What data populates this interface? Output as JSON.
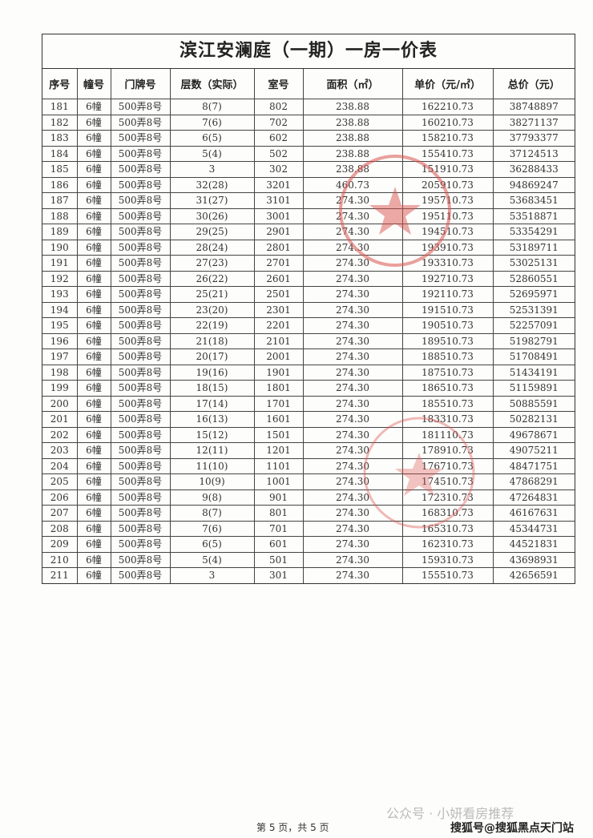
{
  "title": "滨江安澜庭（一期）一房一价表",
  "columns": [
    "序号",
    "幢号",
    "门牌号",
    "层数（实际）",
    "室号",
    "面积（㎡）",
    "单价（元/㎡）",
    "总价（元）"
  ],
  "rows": [
    [
      "181",
      "6幢",
      "500弄8号",
      "8(7)",
      "802",
      "238.88",
      "162210.73",
      "38748897"
    ],
    [
      "182",
      "6幢",
      "500弄8号",
      "7(6)",
      "702",
      "238.88",
      "160210.73",
      "38271137"
    ],
    [
      "183",
      "6幢",
      "500弄8号",
      "6(5)",
      "602",
      "238.88",
      "158210.73",
      "37793377"
    ],
    [
      "184",
      "6幢",
      "500弄8号",
      "5(4)",
      "502",
      "238.88",
      "155410.73",
      "37124513"
    ],
    [
      "185",
      "6幢",
      "500弄8号",
      "3",
      "302",
      "238.88",
      "151910.73",
      "36288433"
    ],
    [
      "186",
      "6幢",
      "500弄8号",
      "32(28)",
      "3201",
      "460.73",
      "205910.73",
      "94869247"
    ],
    [
      "187",
      "6幢",
      "500弄8号",
      "31(27)",
      "3101",
      "274.30",
      "195710.73",
      "53683451"
    ],
    [
      "188",
      "6幢",
      "500弄8号",
      "30(26)",
      "3001",
      "274.30",
      "195110.73",
      "53518871"
    ],
    [
      "189",
      "6幢",
      "500弄8号",
      "29(25)",
      "2901",
      "274.30",
      "194510.73",
      "53354291"
    ],
    [
      "190",
      "6幢",
      "500弄8号",
      "28(24)",
      "2801",
      "274.30",
      "193910.73",
      "53189711"
    ],
    [
      "191",
      "6幢",
      "500弄8号",
      "27(23)",
      "2701",
      "274.30",
      "193310.73",
      "53025131"
    ],
    [
      "192",
      "6幢",
      "500弄8号",
      "26(22)",
      "2601",
      "274.30",
      "192710.73",
      "52860551"
    ],
    [
      "193",
      "6幢",
      "500弄8号",
      "25(21)",
      "2501",
      "274.30",
      "192110.73",
      "52695971"
    ],
    [
      "194",
      "6幢",
      "500弄8号",
      "23(20)",
      "2301",
      "274.30",
      "191510.73",
      "52531391"
    ],
    [
      "195",
      "6幢",
      "500弄8号",
      "22(19)",
      "2201",
      "274.30",
      "190510.73",
      "52257091"
    ],
    [
      "196",
      "6幢",
      "500弄8号",
      "21(18)",
      "2101",
      "274.30",
      "189510.73",
      "51982791"
    ],
    [
      "197",
      "6幢",
      "500弄8号",
      "20(17)",
      "2001",
      "274.30",
      "188510.73",
      "51708491"
    ],
    [
      "198",
      "6幢",
      "500弄8号",
      "19(16)",
      "1901",
      "274.30",
      "187510.73",
      "51434191"
    ],
    [
      "199",
      "6幢",
      "500弄8号",
      "18(15)",
      "1801",
      "274.30",
      "186510.73",
      "51159891"
    ],
    [
      "200",
      "6幢",
      "500弄8号",
      "17(14)",
      "1701",
      "274.30",
      "185510.73",
      "50885591"
    ],
    [
      "201",
      "6幢",
      "500弄8号",
      "16(13)",
      "1601",
      "274.30",
      "183310.73",
      "50282131"
    ],
    [
      "202",
      "6幢",
      "500弄8号",
      "15(12)",
      "1501",
      "274.30",
      "181110.73",
      "49678671"
    ],
    [
      "203",
      "6幢",
      "500弄8号",
      "12(11)",
      "1201",
      "274.30",
      "178910.73",
      "49075211"
    ],
    [
      "204",
      "6幢",
      "500弄8号",
      "11(10)",
      "1101",
      "274.30",
      "176710.73",
      "48471751"
    ],
    [
      "205",
      "6幢",
      "500弄8号",
      "10(9)",
      "1001",
      "274.30",
      "174510.73",
      "47868291"
    ],
    [
      "206",
      "6幢",
      "500弄8号",
      "9(8)",
      "901",
      "274.30",
      "172310.73",
      "47264831"
    ],
    [
      "207",
      "6幢",
      "500弄8号",
      "8(7)",
      "801",
      "274.30",
      "168310.73",
      "46167631"
    ],
    [
      "208",
      "6幢",
      "500弄8号",
      "7(6)",
      "701",
      "274.30",
      "165310.73",
      "45344731"
    ],
    [
      "209",
      "6幢",
      "500弄8号",
      "6(5)",
      "601",
      "274.30",
      "162310.73",
      "44521831"
    ],
    [
      "210",
      "6幢",
      "500弄8号",
      "5(4)",
      "501",
      "274.30",
      "159310.73",
      "43698931"
    ],
    [
      "211",
      "6幢",
      "500弄8号",
      "3",
      "301",
      "274.30",
      "155510.73",
      "42656591"
    ]
  ],
  "footer": {
    "page": "第 5 页，共 5 页"
  },
  "watermark": {
    "wechat": "公众号 · 小妍看房推荐",
    "sohu": "搜狐号@搜狐黑点天门站"
  },
  "stamp_color": "#d9534f"
}
